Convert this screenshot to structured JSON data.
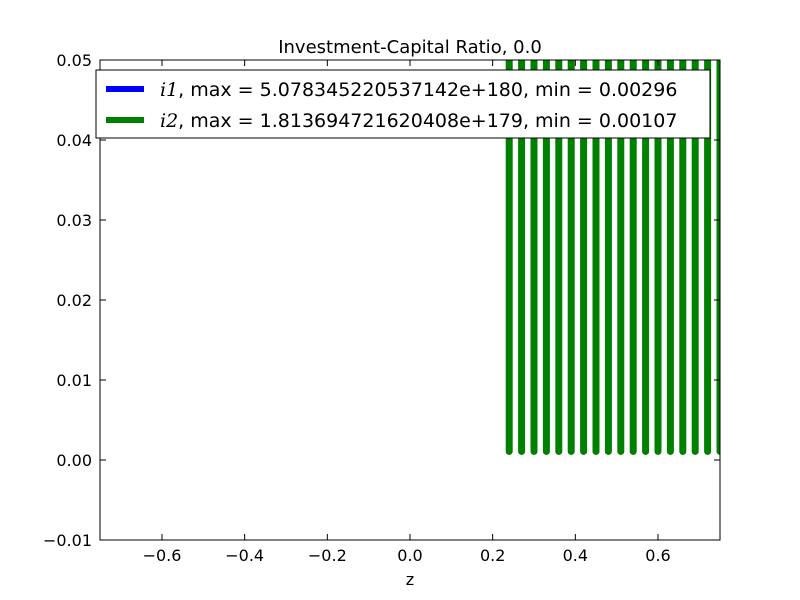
{
  "chart_data": {
    "type": "line",
    "title": "Investment-Capital Ratio, 0.0",
    "xlabel": "z",
    "ylabel": "",
    "xlim": [
      -0.75,
      0.75
    ],
    "ylim": [
      -0.01,
      0.05
    ],
    "xticks": [
      "−0.6",
      "−0.4",
      "−0.2",
      "0.0",
      "0.2",
      "0.4",
      "0.6"
    ],
    "xtick_values": [
      -0.6,
      -0.4,
      -0.2,
      0.0,
      0.2,
      0.4,
      0.6
    ],
    "yticks": [
      "−0.01",
      "0.00",
      "0.01",
      "0.02",
      "0.03",
      "0.04",
      "0.05"
    ],
    "ytick_values": [
      -0.01,
      0.0,
      0.01,
      0.02,
      0.03,
      0.04,
      0.05
    ],
    "legend_position": "top",
    "series": [
      {
        "name": "i1",
        "legend": "i1, max = 5.078345220537142e+180, min = 0.00296",
        "legend_italic": "i1",
        "legend_rest": ", max = 5.078345220537142e+180, min = 0.00296",
        "color": "#0000ff",
        "min": 0.00296,
        "max": 5.078345220537142e+180
      },
      {
        "name": "i2",
        "legend": "i2, max = 1.813694721620408e+179, min = 0.00107",
        "legend_italic": "i2",
        "legend_rest": ", max = 1.813694721620408e+179, min = 0.00107",
        "color": "#008000",
        "min": 0.00107,
        "max": 1.813694721620408e+179,
        "spike_x": [
          0.24,
          0.27,
          0.3,
          0.33,
          0.36,
          0.39,
          0.42,
          0.45,
          0.48,
          0.51,
          0.54,
          0.57,
          0.6,
          0.63,
          0.66,
          0.69,
          0.72,
          0.75
        ]
      }
    ]
  }
}
